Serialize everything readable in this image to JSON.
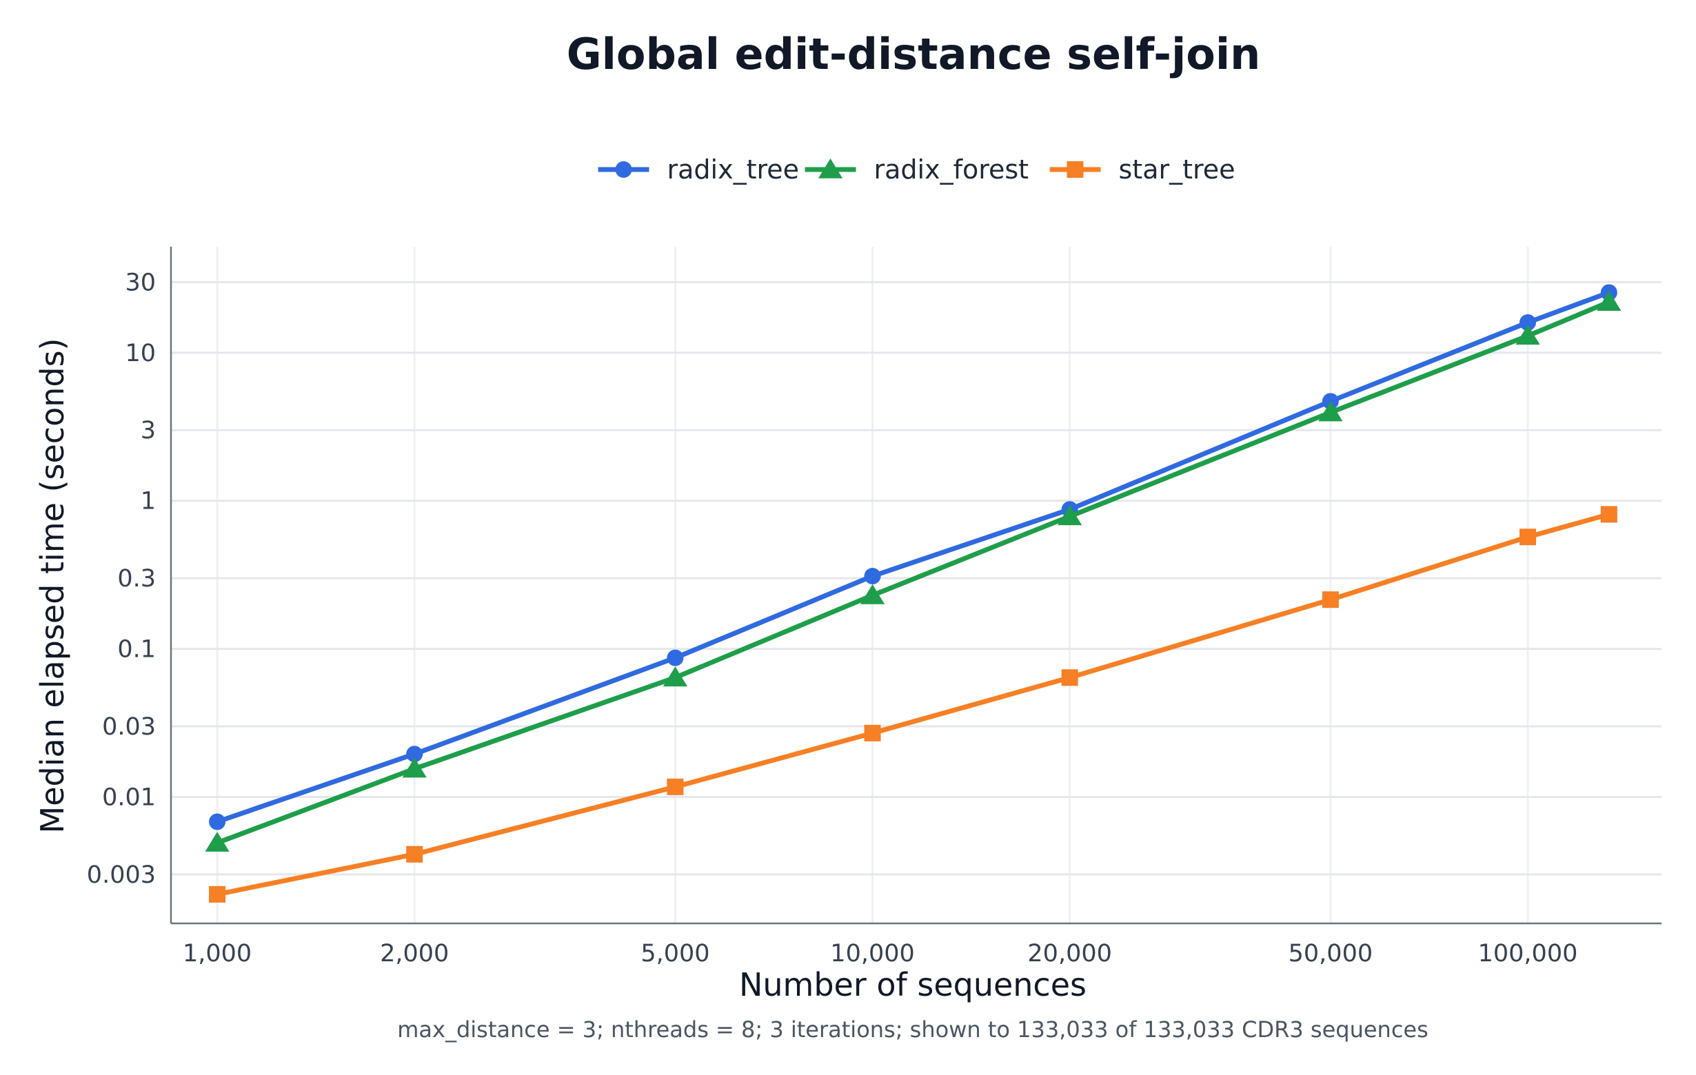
{
  "chart_data": {
    "type": "line",
    "title": "Global edit-distance self-join",
    "xlabel": "Number of sequences",
    "ylabel": "Median elapsed time (seconds)",
    "footnote": "max_distance = 3; nthreads = 8; 3 iterations; shown to 133,033 of 133,033 CDR3 sequences",
    "x_scale": "log",
    "y_scale": "log",
    "xlim": [
      850,
      160000
    ],
    "ylim": [
      0.0014,
      52
    ],
    "x_ticks": [
      1000,
      2000,
      5000,
      10000,
      20000,
      50000,
      100000
    ],
    "x_tick_labels": [
      "1,000",
      "2,000",
      "5,000",
      "10,000",
      "20,000",
      "50,000",
      "100,000"
    ],
    "y_ticks": [
      0.003,
      0.01,
      0.03,
      0.1,
      0.3,
      1,
      3,
      10,
      30
    ],
    "y_tick_labels": [
      "0.003",
      "0.01",
      "0.03",
      "0.1",
      "0.3",
      "1",
      "3",
      "10",
      "30"
    ],
    "grid": true,
    "legend_position": "top-center",
    "x": [
      1000,
      2000,
      5000,
      10000,
      20000,
      50000,
      100000,
      133033
    ],
    "series": [
      {
        "name": "radix_tree",
        "color": "#2f6ae0",
        "marker": "circle",
        "values": [
          0.0068,
          0.0195,
          0.087,
          0.31,
          0.875,
          4.7,
          16.0,
          25.5
        ]
      },
      {
        "name": "radix_forest",
        "color": "#1e9e4a",
        "marker": "triangle",
        "values": [
          0.0049,
          0.0155,
          0.064,
          0.23,
          0.785,
          3.95,
          13.0,
          22.0
        ]
      },
      {
        "name": "star_tree",
        "color": "#f77f24",
        "marker": "square",
        "values": [
          0.0022,
          0.0041,
          0.0117,
          0.027,
          0.064,
          0.215,
          0.57,
          0.81
        ]
      }
    ]
  }
}
